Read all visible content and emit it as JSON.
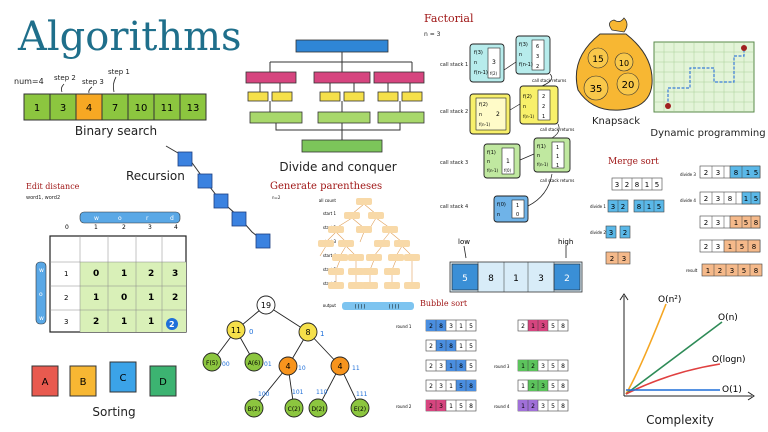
{
  "title": "Algorithms",
  "binary_search": {
    "label": "Binary search",
    "cells": [
      "1",
      "3",
      "4",
      "7",
      "10",
      "11",
      "13"
    ],
    "num": "num=4",
    "steps": [
      "step 2",
      "step 3",
      "step 1"
    ]
  },
  "divide_conquer": {
    "label": "Divide and conquer"
  },
  "recursion": {
    "label": "Recursion"
  },
  "factorial": {
    "label": "Factorial",
    "n": "n = 3",
    "stacks": [
      "call stack 1",
      "call stack 2",
      "call stack 3",
      "call stack 4"
    ],
    "returns": [
      "call stack returns",
      "call stack returns",
      "call stack returns"
    ],
    "frame_labels": {
      "f3": "f(3)",
      "f2": "f(2)",
      "f1": "f(1)",
      "f0": "f(0)",
      "n": "n",
      "f_nm1": "f(n-1)"
    },
    "values": {
      "three": "3",
      "two": "2",
      "one": "1",
      "zero": "0",
      "six": "6",
      "f_two": "f(2)",
      "f_one": "f(1)",
      "f_zero": "f(0)"
    }
  },
  "knapsack": {
    "label": "Knapsack",
    "items": [
      "15",
      "10",
      "35",
      "20"
    ]
  },
  "dynamic_programming": {
    "label": "Dynamic programming"
  },
  "edit_distance": {
    "label": "Edit distance",
    "words": "word1, word2",
    "chars": [
      "w",
      "o",
      "r",
      "d"
    ],
    "row_chars": [
      "w",
      "o",
      "w"
    ],
    "header_nums": [
      "0",
      "1",
      "2",
      "3",
      "4"
    ],
    "rows": [
      [
        "1",
        "0",
        "1",
        "2",
        "3"
      ],
      [
        "2",
        "1",
        "0",
        "1",
        "2"
      ],
      [
        "3",
        "2",
        "1",
        "1",
        "2"
      ]
    ]
  },
  "generate_parentheses": {
    "label": "Generate parentheses",
    "n": "n=2",
    "levels": [
      "all count",
      "start 1",
      "start 2",
      "start 3",
      "start 4",
      "start 5",
      "start 6",
      "start 7"
    ],
    "output": "output",
    "results": [
      "(())",
      "()()"
    ]
  },
  "merge_sort": {
    "label": "Merge sort",
    "initial": [
      "3",
      "2",
      "8",
      "1",
      "5"
    ],
    "divide1": [
      "3",
      "2",
      "8",
      "1",
      "5"
    ],
    "divide2": [
      "3",
      "2"
    ],
    "sorted_pair": [
      "2",
      "3"
    ],
    "final": [
      "1",
      "2",
      "3",
      "5",
      "8"
    ],
    "divide_labels": [
      "divide 1",
      "divide 2",
      "divide 3",
      "divide 4"
    ],
    "right_parts": {
      "top": [
        "2",
        "3",
        "8",
        "1",
        "5"
      ],
      "second": [
        "2",
        "3",
        "8",
        "1",
        "5"
      ],
      "third": [
        "2",
        "3",
        "1",
        "5",
        "8"
      ],
      "fourth": [
        "2",
        "3",
        "1",
        "5",
        "8"
      ]
    },
    "result": "result"
  },
  "quick_sort": {
    "low": "low",
    "high": "high",
    "cells": [
      "5",
      "8",
      "1",
      "3",
      "2"
    ]
  },
  "tree": {
    "nodes": [
      "19",
      "11",
      "8",
      "F(5)",
      "A(6)",
      "4",
      "4",
      "B(2)",
      "C(2)",
      "D(2)",
      "E(2)"
    ],
    "codes": [
      "0",
      "1",
      "00",
      "01",
      "10",
      "11",
      "100",
      "101",
      "110",
      "111"
    ]
  },
  "bubble_sort": {
    "label": "Bubble sort",
    "rounds": [
      "round 1",
      "round 2",
      "round 3",
      "round 4"
    ],
    "left": [
      [
        "2",
        "8",
        "3",
        "1",
        "5"
      ],
      [
        "2",
        "3",
        "8",
        "1",
        "5"
      ],
      [
        "2",
        "3",
        "1",
        "8",
        "5"
      ],
      [
        "2",
        "3",
        "1",
        "5",
        "8"
      ]
    ],
    "right": [
      [
        "2",
        "3",
        "1",
        "5",
        "8"
      ],
      [
        "2",
        "1",
        "3",
        "5",
        "8"
      ],
      [
        "1",
        "2",
        "3",
        "5",
        "8"
      ],
      [
        "1",
        "2",
        "3",
        "5",
        "8"
      ]
    ]
  },
  "sorting": {
    "label": "Sorting",
    "items": [
      "A",
      "B",
      "C",
      "D"
    ]
  },
  "complexity": {
    "label": "Complexity",
    "curves": [
      "O(n²)",
      "O(n)",
      "O(logn)",
      "O(1)"
    ],
    "colors": [
      "#f5a623",
      "#2e8b57",
      "#e04040",
      "#1e6fd9"
    ]
  }
}
